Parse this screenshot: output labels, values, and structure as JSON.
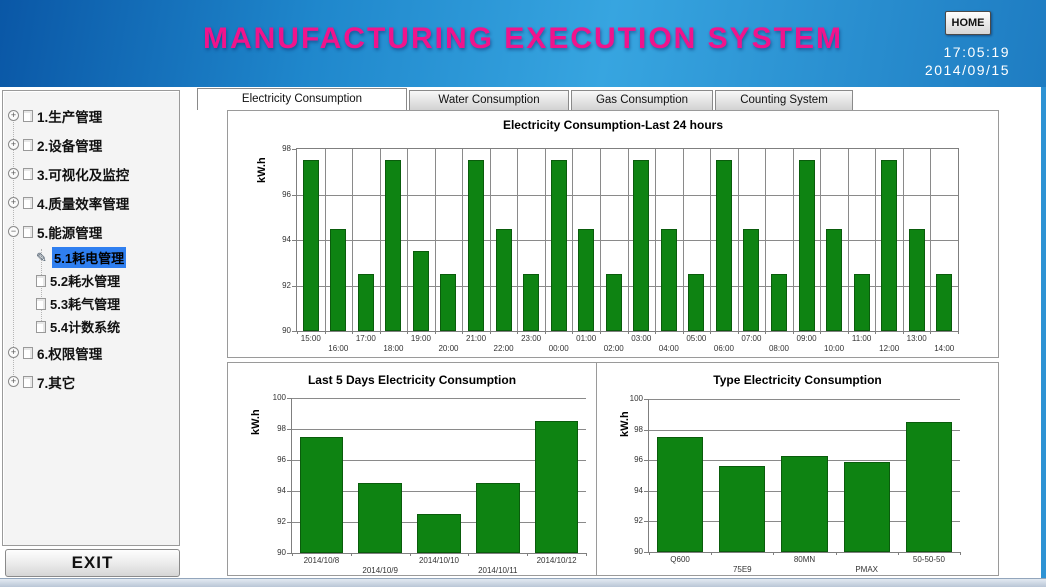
{
  "header": {
    "title": "MANUFACTURING EXECUTION SYSTEM",
    "title_color": "#f0148c",
    "home_label": "HOME",
    "time": "17:05:19",
    "date": "2014/09/15"
  },
  "tabs": [
    {
      "label": "Electricity Consumption",
      "active": true
    },
    {
      "label": "Water Consumption",
      "active": false
    },
    {
      "label": "Gas Consumption",
      "active": false
    },
    {
      "label": "Counting System",
      "active": false
    }
  ],
  "sidebar": {
    "items": [
      {
        "label": "1.生产管理",
        "expanded": false
      },
      {
        "label": "2.设备管理",
        "expanded": false
      },
      {
        "label": "3.可视化及监控",
        "expanded": false
      },
      {
        "label": "4.质量效率管理",
        "expanded": false
      },
      {
        "label": "5.能源管理",
        "expanded": true,
        "children": [
          {
            "label": "5.1耗电管理",
            "selected": true
          },
          {
            "label": "5.2耗水管理"
          },
          {
            "label": "5.3耗气管理"
          },
          {
            "label": "5.4计数系统"
          }
        ]
      },
      {
        "label": "6.权限管理",
        "expanded": false
      },
      {
        "label": "7.其它",
        "expanded": false
      }
    ],
    "exit_label": "EXIT"
  },
  "chart_data": [
    {
      "type": "bar",
      "title": "Electricity Consumption-Last 24 hours",
      "ylabel": "kW.h",
      "ylim": [
        90,
        98
      ],
      "yticks": [
        90,
        92,
        94,
        96,
        98
      ],
      "categories": [
        "15:00",
        "16:00",
        "17:00",
        "18:00",
        "19:00",
        "20:00",
        "21:00",
        "22:00",
        "23:00",
        "00:00",
        "01:00",
        "02:00",
        "03:00",
        "04:00",
        "05:00",
        "06:00",
        "07:00",
        "08:00",
        "09:00",
        "10:00",
        "11:00",
        "12:00",
        "13:00",
        "14:00"
      ],
      "values": [
        97.5,
        94.5,
        92.5,
        97.5,
        93.5,
        92.5,
        97.5,
        94.5,
        92.5,
        97.5,
        94.5,
        92.5,
        97.5,
        94.5,
        92.5,
        97.5,
        94.5,
        92.5,
        97.5,
        94.5,
        92.5,
        97.5,
        94.5,
        92.5
      ],
      "bar_color": "#0e8312",
      "grid": "xy",
      "frame": true,
      "legend": "none"
    },
    {
      "type": "bar",
      "title": "Last 5 Days Electricity Consumption",
      "ylabel": "kW.h",
      "ylim": [
        90,
        100
      ],
      "yticks": [
        90,
        92,
        94,
        96,
        98,
        100
      ],
      "categories": [
        "2014/10/8",
        "2014/10/9",
        "2014/10/10",
        "2014/10/11",
        "2014/10/12"
      ],
      "values": [
        97.5,
        94.5,
        92.5,
        94.5,
        98.5
      ],
      "bar_color": "#0e8312",
      "grid": "y",
      "frame": false,
      "legend": "none"
    },
    {
      "type": "bar",
      "title": "Type Electricity Consumption",
      "ylabel": "kW.h",
      "ylim": [
        90,
        100
      ],
      "yticks": [
        90,
        92,
        94,
        96,
        98,
        100
      ],
      "categories": [
        "Q600",
        "75E9",
        "80MN",
        "PMAX",
        "50-50-50"
      ],
      "values": [
        97.5,
        95.6,
        96.3,
        95.9,
        98.5
      ],
      "bar_color": "#0e8312",
      "grid": "y",
      "frame": false,
      "legend": "none"
    }
  ]
}
